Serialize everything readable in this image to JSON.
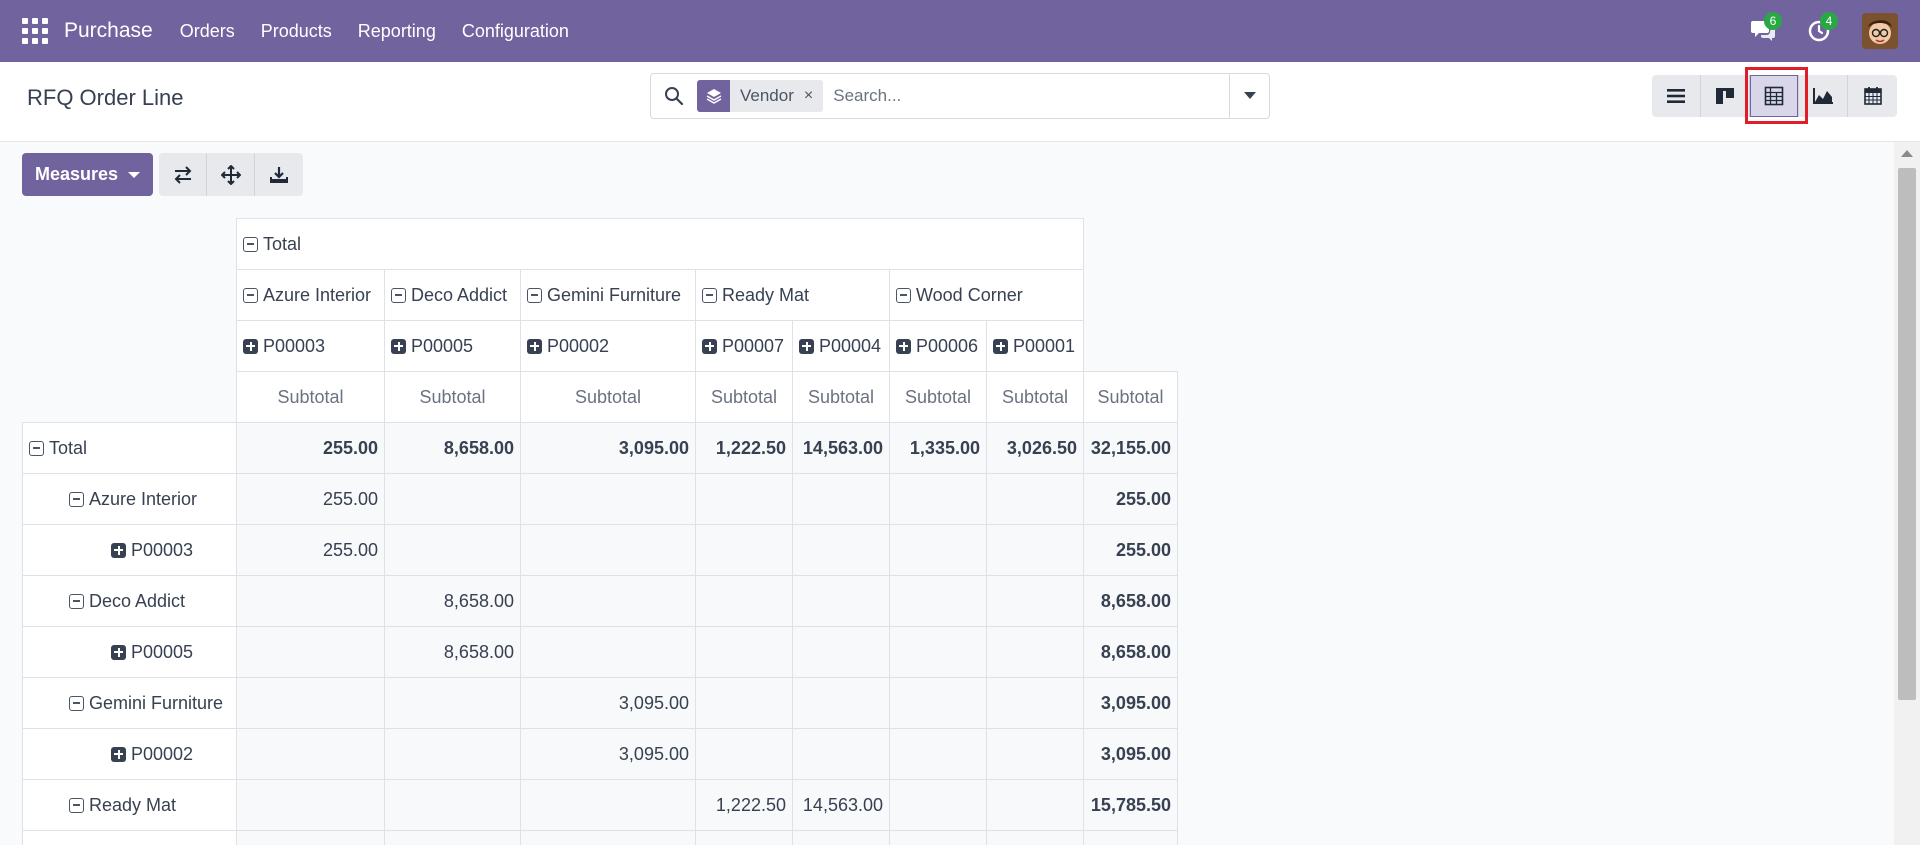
{
  "navbar": {
    "app_name": "Purchase",
    "menu": [
      "Orders",
      "Products",
      "Reporting",
      "Configuration"
    ],
    "messages_count": "6",
    "activities_count": "4",
    "bg_color": "#71639e"
  },
  "control_panel": {
    "title": "RFQ Order Line",
    "search": {
      "facet_label": "Vendor",
      "facet_remove": "×",
      "placeholder": "Search..."
    },
    "views": [
      "list-view-icon",
      "kanban-view-icon",
      "pivot-view-icon",
      "graph-view-icon",
      "calendar-view-icon"
    ],
    "active_view": "pivot"
  },
  "actions": {
    "measures_label": "Measures"
  },
  "pivot": {
    "col_total": "Total",
    "vendors": [
      "Azure Interior",
      "Deco Addict",
      "Gemini Furniture",
      "Ready Mat",
      "Wood Corner"
    ],
    "orders": [
      "P00003",
      "P00005",
      "P00002",
      "P00007",
      "P00004",
      "P00006",
      "P00001"
    ],
    "subtotal": "Subtotal",
    "rows": {
      "total": {
        "label": "Total",
        "values": [
          "255.00",
          "8,658.00",
          "3,095.00",
          "1,222.50",
          "14,563.00",
          "1,335.00",
          "3,026.50"
        ],
        "sum": "32,155.00"
      },
      "azure": {
        "label": "Azure Interior",
        "v": "255.00",
        "sum": "255.00"
      },
      "p00003": {
        "label": "P00003",
        "v": "255.00",
        "sum": "255.00"
      },
      "deco": {
        "label": "Deco Addict",
        "v": "8,658.00",
        "sum": "8,658.00"
      },
      "p00005": {
        "label": "P00005",
        "v": "8,658.00",
        "sum": "8,658.00"
      },
      "gemini": {
        "label": "Gemini Furniture",
        "v": "3,095.00",
        "sum": "3,095.00"
      },
      "p00002": {
        "label": "P00002",
        "v": "3,095.00",
        "sum": "3,095.00"
      },
      "readymat": {
        "label": "Ready Mat",
        "v1": "1,222.50",
        "v2": "14,563.00",
        "sum": "15,785.50"
      }
    }
  }
}
